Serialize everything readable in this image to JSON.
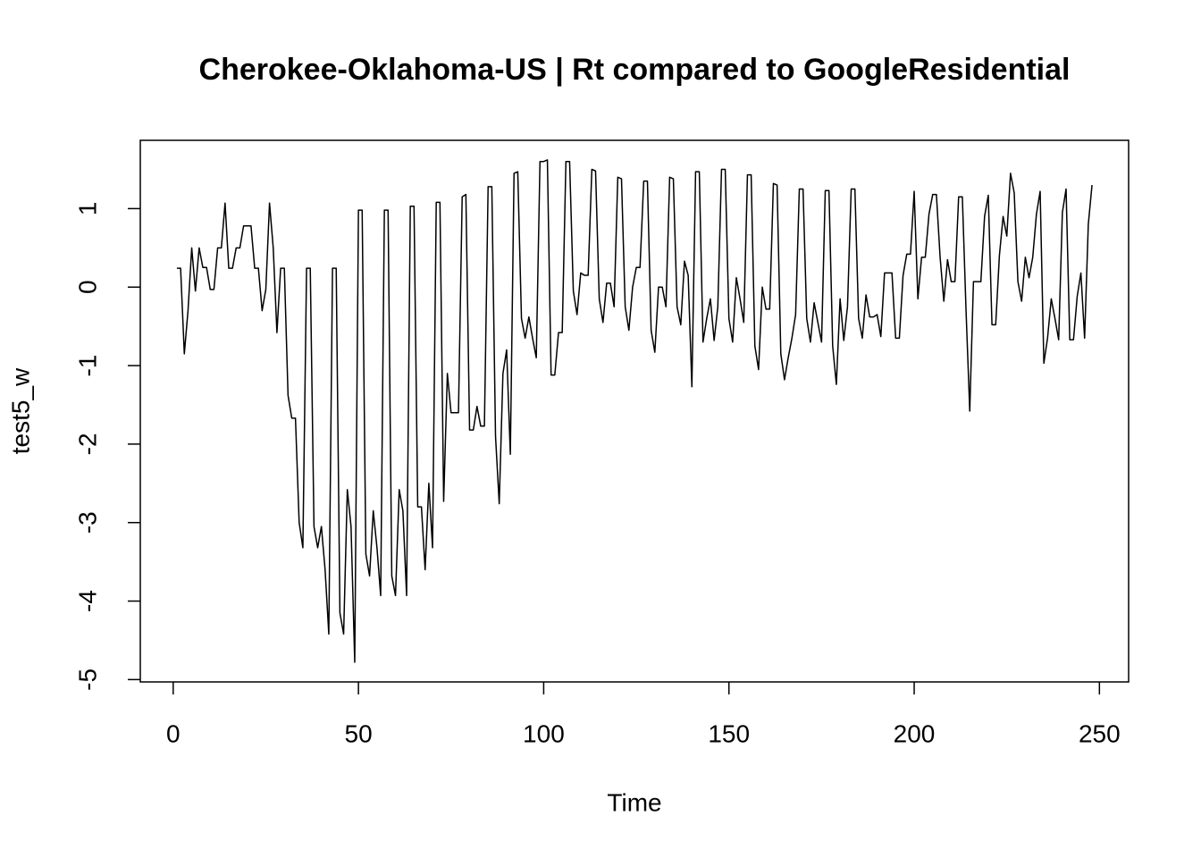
{
  "chart_data": {
    "type": "line",
    "title": "Cherokee-Oklahoma-US | Rt compared to GoogleResidential",
    "x_label": "Time",
    "y_label": "test5_w",
    "color": "#000000",
    "xlim": [
      -8.88,
      257.88
    ],
    "ylim": [
      -5.03,
      1.87
    ],
    "xticks": [
      0,
      50,
      100,
      150,
      200,
      250
    ],
    "yticks": [
      -5,
      -4,
      -3,
      -2,
      -1,
      0,
      1
    ],
    "x": [
      1,
      2,
      3,
      4,
      5,
      6,
      7,
      8,
      9,
      10,
      11,
      12,
      13,
      14,
      15,
      16,
      17,
      18,
      19,
      20,
      21,
      22,
      23,
      24,
      25,
      26,
      27,
      28,
      29,
      30,
      31,
      32,
      33,
      34,
      35,
      36,
      37,
      38,
      39,
      40,
      41,
      42,
      43,
      44,
      45,
      46,
      47,
      48,
      49,
      50,
      51,
      52,
      53,
      54,
      55,
      56,
      57,
      58,
      59,
      60,
      61,
      62,
      63,
      64,
      65,
      66,
      67,
      68,
      69,
      70,
      71,
      72,
      73,
      74,
      75,
      76,
      77,
      78,
      79,
      80,
      81,
      82,
      83,
      84,
      85,
      86,
      87,
      88,
      89,
      90,
      91,
      92,
      93,
      94,
      95,
      96,
      97,
      98,
      99,
      100,
      101,
      102,
      103,
      104,
      105,
      106,
      107,
      108,
      109,
      110,
      111,
      112,
      113,
      114,
      115,
      116,
      117,
      118,
      119,
      120,
      121,
      122,
      123,
      124,
      125,
      126,
      127,
      128,
      129,
      130,
      131,
      132,
      133,
      134,
      135,
      136,
      137,
      138,
      139,
      140,
      141,
      142,
      143,
      144,
      145,
      146,
      147,
      148,
      149,
      150,
      151,
      152,
      153,
      154,
      155,
      156,
      157,
      158,
      159,
      160,
      161,
      162,
      163,
      164,
      165,
      166,
      167,
      168,
      169,
      170,
      171,
      172,
      173,
      174,
      175,
      176,
      177,
      178,
      179,
      180,
      181,
      182,
      183,
      184,
      185,
      186,
      187,
      188,
      189,
      190,
      191,
      192,
      193,
      194,
      195,
      196,
      197,
      198,
      199,
      200,
      201,
      202,
      203,
      204,
      205,
      206,
      207,
      208,
      209,
      210,
      211,
      212,
      213,
      214,
      215,
      216,
      217,
      218,
      219,
      220,
      221,
      222,
      223,
      224,
      225,
      226,
      227,
      228,
      229,
      230,
      231,
      232,
      233,
      234,
      235,
      236,
      237,
      238,
      239,
      240,
      241,
      242,
      243,
      244,
      245,
      246,
      247,
      248
    ],
    "values": [
      0.24,
      0.24,
      -0.85,
      -0.3,
      0.5,
      -0.05,
      0.5,
      0.25,
      0.25,
      -0.03,
      -0.03,
      0.5,
      0.5,
      1.07,
      0.24,
      0.24,
      0.5,
      0.5,
      0.78,
      0.78,
      0.78,
      0.24,
      0.24,
      -0.3,
      -0.03,
      1.07,
      0.5,
      -0.58,
      0.24,
      0.24,
      -1.38,
      -1.67,
      -1.67,
      -3.0,
      -3.32,
      0.24,
      0.24,
      -3.05,
      -3.32,
      -3.05,
      -3.6,
      -4.42,
      0.24,
      0.24,
      -4.15,
      -4.42,
      -2.58,
      -3.05,
      -4.78,
      0.98,
      0.98,
      -3.4,
      -3.68,
      -2.85,
      -3.32,
      -3.93,
      0.98,
      0.98,
      -3.68,
      -3.93,
      -2.58,
      -2.85,
      -3.93,
      1.03,
      1.03,
      -2.8,
      -2.8,
      -3.6,
      -2.5,
      -3.32,
      1.08,
      1.08,
      -2.73,
      -1.1,
      -1.6,
      -1.6,
      -1.6,
      1.15,
      1.18,
      -1.82,
      -1.82,
      -1.52,
      -1.77,
      -1.77,
      1.28,
      1.28,
      -1.9,
      -2.76,
      -1.1,
      -0.8,
      -2.13,
      1.45,
      1.47,
      -0.4,
      -0.65,
      -0.38,
      -0.65,
      -0.9,
      1.6,
      1.6,
      1.62,
      -1.12,
      -1.12,
      -0.58,
      -0.58,
      1.6,
      1.6,
      -0.05,
      -0.35,
      0.18,
      0.15,
      0.15,
      1.5,
      1.48,
      -0.15,
      -0.45,
      0.05,
      0.05,
      -0.25,
      1.4,
      1.38,
      -0.25,
      -0.55,
      0.0,
      0.25,
      0.25,
      1.35,
      1.35,
      -0.55,
      -0.83,
      0.0,
      0.0,
      -0.25,
      1.4,
      1.38,
      -0.25,
      -0.48,
      0.33,
      0.15,
      -1.27,
      1.47,
      1.47,
      -0.7,
      -0.4,
      -0.15,
      -0.68,
      -0.25,
      1.5,
      1.5,
      -0.4,
      -0.7,
      0.12,
      -0.15,
      -0.45,
      1.43,
      1.43,
      -0.75,
      -1.05,
      0.0,
      -0.28,
      -0.28,
      1.32,
      1.3,
      -0.85,
      -1.18,
      -0.9,
      -0.65,
      -0.35,
      1.25,
      1.25,
      -0.4,
      -0.7,
      -0.2,
      -0.45,
      -0.7,
      1.23,
      1.23,
      -0.75,
      -1.24,
      -0.15,
      -0.68,
      -0.25,
      1.25,
      1.25,
      -0.4,
      -0.65,
      -0.1,
      -0.38,
      -0.38,
      -0.35,
      -0.63,
      0.18,
      0.18,
      0.18,
      -0.65,
      -0.65,
      0.15,
      0.42,
      0.42,
      1.22,
      -0.15,
      0.38,
      0.38,
      0.93,
      1.18,
      1.18,
      0.38,
      -0.18,
      0.35,
      0.07,
      0.07,
      1.15,
      1.15,
      -0.3,
      -1.58,
      0.07,
      0.07,
      0.07,
      0.9,
      1.17,
      -0.48,
      -0.48,
      0.4,
      0.9,
      0.65,
      1.45,
      1.2,
      0.07,
      -0.18,
      0.38,
      0.12,
      0.38,
      0.93,
      1.22,
      -0.97,
      -0.65,
      -0.15,
      -0.4,
      -0.67,
      0.95,
      1.25,
      -0.67,
      -0.67,
      -0.12,
      0.18,
      -0.65,
      0.8,
      1.3
    ]
  }
}
